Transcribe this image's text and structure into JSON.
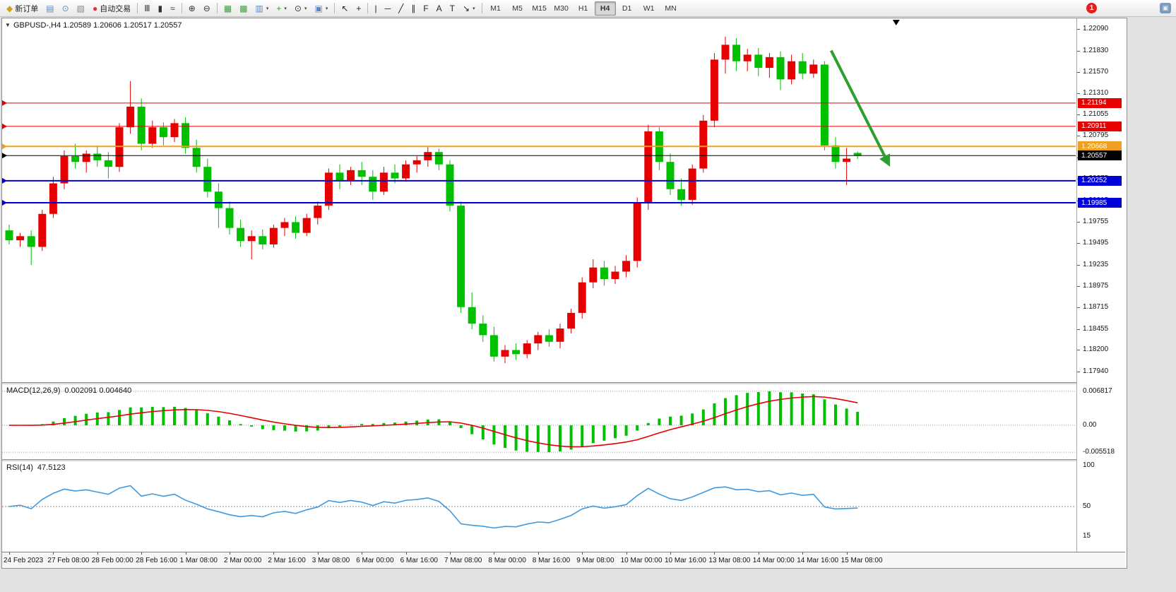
{
  "toolbar": {
    "buttons": [
      {
        "name": "new-order-button",
        "icon": "new-order-icon",
        "glyph": "◆",
        "color": "#d4a017",
        "label": "新订单"
      },
      {
        "name": "market-watch-button",
        "icon": "market-watch-icon",
        "glyph": "▤",
        "color": "#5b87c5"
      },
      {
        "name": "data-window-button",
        "icon": "data-window-icon",
        "glyph": "⊙",
        "color": "#5b87c5"
      },
      {
        "name": "navigator-button",
        "icon": "navigator-icon",
        "glyph": "▧",
        "color": "#888888"
      },
      {
        "name": "autotrading-button",
        "icon": "autotrading-icon",
        "glyph": "●",
        "color": "#dd3333",
        "label": "自动交易"
      },
      {
        "sep": true
      },
      {
        "name": "bars-chart-button",
        "icon": "bars-chart-icon",
        "glyph": "Ⅲ",
        "color": "#333333"
      },
      {
        "name": "candles-chart-button",
        "icon": "candles-chart-icon",
        "glyph": "▮",
        "color": "#333333"
      },
      {
        "name": "line-chart-button",
        "icon": "line-chart-icon",
        "glyph": "≈",
        "color": "#333333"
      },
      {
        "sep": true
      },
      {
        "name": "zoom-in-button",
        "icon": "zoom-in-icon",
        "glyph": "⊕",
        "color": "#333333"
      },
      {
        "name": "zoom-out-button",
        "icon": "zoom-out-icon",
        "glyph": "⊖",
        "color": "#333333"
      },
      {
        "sep": true
      },
      {
        "name": "tile-windows-button",
        "icon": "tile-windows-icon",
        "glyph": "▦",
        "color": "#3f9e3f"
      },
      {
        "name": "strategy-tester-button",
        "icon": "strategy-tester-icon",
        "glyph": "▩",
        "color": "#3f9e3f"
      },
      {
        "name": "new-chart-button",
        "icon": "new-chart-icon",
        "glyph": "▥",
        "color": "#5b87c5",
        "caret": true
      },
      {
        "name": "indicators-button",
        "icon": "add-indicator-icon",
        "glyph": "+",
        "color": "#2aa02a",
        "caret": true
      },
      {
        "name": "periods-button",
        "icon": "periods-icon",
        "glyph": "⊙",
        "color": "#333333",
        "caret": true
      },
      {
        "name": "templates-button",
        "icon": "template-icon",
        "glyph": "▣",
        "color": "#5b87c5",
        "caret": true
      },
      {
        "sep": true
      },
      {
        "name": "cursor-button",
        "icon": "cursor-icon",
        "glyph": "↖",
        "color": "#222222"
      },
      {
        "name": "crosshair-button",
        "icon": "crosshair-icon",
        "glyph": "+",
        "color": "#222222"
      },
      {
        "sep": true
      },
      {
        "name": "vline-button",
        "icon": "vertical-line-icon",
        "glyph": "|",
        "color": "#222222"
      },
      {
        "name": "hline-button",
        "icon": "horizontal-line-icon",
        "glyph": "─",
        "color": "#222222"
      },
      {
        "name": "trendline-button",
        "icon": "trendline-icon",
        "glyph": "╱",
        "color": "#222222"
      },
      {
        "name": "channel-button",
        "icon": "channel-icon",
        "glyph": "∥",
        "color": "#222222"
      },
      {
        "name": "fibonacci-button",
        "icon": "fibonacci-icon",
        "glyph": "F",
        "color": "#222222"
      },
      {
        "name": "text-button",
        "icon": "text-icon",
        "glyph": "A",
        "color": "#222222"
      },
      {
        "name": "label-button",
        "icon": "text-label-icon",
        "glyph": "T",
        "color": "#222222"
      },
      {
        "name": "arrows-button",
        "icon": "arrow-objects-icon",
        "glyph": "↘",
        "color": "#222222",
        "caret": true
      },
      {
        "sep": true
      }
    ],
    "timeframes": {
      "items": [
        "M1",
        "M5",
        "M15",
        "M30",
        "H1",
        "H4",
        "D1",
        "W1",
        "MN"
      ],
      "active": "H4"
    },
    "badge": "1",
    "plugin_glyph": "▣"
  },
  "chart": {
    "info_label": "GBPUSD-,H4 1.20589 1.20606 1.20517 1.20557",
    "oneclick_glyph": "▼",
    "shift_marker_glyph": "▼"
  },
  "chart_data": {
    "type": "candlestick",
    "symbol": "GBPUSD-",
    "timeframe": "H4",
    "title": "GBPUSD-,H4",
    "ohlc_current": {
      "open": "1.20589",
      "high": "1.20606",
      "low": "1.20517",
      "close": "1.20557"
    },
    "x_labels": [
      "24 Feb 2023",
      "27 Feb 08:00",
      "28 Feb 00:00",
      "28 Feb 16:00",
      "1 Mar 08:00",
      "2 Mar 00:00",
      "2 Mar 16:00",
      "3 Mar 08:00",
      "6 Mar 00:00",
      "6 Mar 16:00",
      "7 Mar 08:00",
      "8 Mar 00:00",
      "8 Mar 16:00",
      "9 Mar 08:00",
      "10 Mar 00:00",
      "10 Mar 16:00",
      "13 Mar 08:00",
      "14 Mar 00:00",
      "14 Mar 16:00",
      "15 Mar 08:00"
    ],
    "label_step": 4,
    "candles": [
      [
        1.1965,
        1.1972,
        1.1948,
        1.1953
      ],
      [
        1.1953,
        1.1962,
        1.1945,
        1.1958
      ],
      [
        1.1958,
        1.1965,
        1.1923,
        1.1945
      ],
      [
        1.1945,
        1.199,
        1.194,
        1.1985
      ],
      [
        1.1985,
        1.203,
        1.198,
        1.2022
      ],
      [
        1.2022,
        1.2062,
        1.2015,
        1.2055
      ],
      [
        1.2055,
        1.207,
        1.204,
        1.2048
      ],
      [
        1.2048,
        1.2062,
        1.2035,
        1.2058
      ],
      [
        1.2058,
        1.2068,
        1.2042,
        1.205
      ],
      [
        1.205,
        1.206,
        1.2028,
        1.2042
      ],
      [
        1.2042,
        1.2095,
        1.2036,
        1.209
      ],
      [
        1.209,
        1.2146,
        1.2082,
        1.2115
      ],
      [
        1.2115,
        1.2125,
        1.2062,
        1.207
      ],
      [
        1.207,
        1.2098,
        1.2065,
        1.209
      ],
      [
        1.209,
        1.2096,
        1.2068,
        1.2078
      ],
      [
        1.2078,
        1.21,
        1.2072,
        1.2095
      ],
      [
        1.2095,
        1.2102,
        1.2058,
        1.2065
      ],
      [
        1.2065,
        1.2075,
        1.2035,
        1.2042
      ],
      [
        1.2042,
        1.2052,
        1.2005,
        1.2012
      ],
      [
        1.2012,
        1.2022,
        1.1968,
        1.1992
      ],
      [
        1.1992,
        1.2,
        1.196,
        1.1968
      ],
      [
        1.1968,
        1.1978,
        1.1945,
        1.1952
      ],
      [
        1.1952,
        1.1965,
        1.193,
        1.1958
      ],
      [
        1.1958,
        1.1966,
        1.1942,
        1.1948
      ],
      [
        1.1948,
        1.1972,
        1.1944,
        1.1968
      ],
      [
        1.1968,
        1.198,
        1.1958,
        1.1975
      ],
      [
        1.1975,
        1.1982,
        1.1955,
        1.1962
      ],
      [
        1.1962,
        1.1985,
        1.1958,
        1.198
      ],
      [
        1.198,
        1.2,
        1.1972,
        1.1995
      ],
      [
        1.1995,
        1.204,
        1.199,
        1.2035
      ],
      [
        1.2035,
        1.2045,
        1.2015,
        1.2025
      ],
      [
        1.2025,
        1.2042,
        1.202,
        1.2038
      ],
      [
        1.2038,
        1.2048,
        1.202,
        1.203
      ],
      [
        1.203,
        1.2038,
        1.2002,
        1.2012
      ],
      [
        1.2012,
        1.2042,
        1.2008,
        1.2035
      ],
      [
        1.2035,
        1.2045,
        1.2022,
        1.2028
      ],
      [
        1.2028,
        1.205,
        1.2024,
        1.2045
      ],
      [
        1.2045,
        1.2055,
        1.2035,
        1.205
      ],
      [
        1.205,
        1.2066,
        1.2042,
        1.206
      ],
      [
        1.206,
        1.2064,
        1.2038,
        1.2045
      ],
      [
        1.2045,
        1.205,
        1.1988,
        1.1995
      ],
      [
        1.1995,
        1.2,
        1.1865,
        1.1872
      ],
      [
        1.1872,
        1.189,
        1.1845,
        1.1852
      ],
      [
        1.1852,
        1.1862,
        1.183,
        1.1838
      ],
      [
        1.1838,
        1.1848,
        1.1806,
        1.1812
      ],
      [
        1.1812,
        1.1826,
        1.1804,
        1.182
      ],
      [
        1.182,
        1.1828,
        1.1808,
        1.1815
      ],
      [
        1.1815,
        1.1832,
        1.181,
        1.1828
      ],
      [
        1.1828,
        1.1842,
        1.182,
        1.1838
      ],
      [
        1.1838,
        1.1845,
        1.1824,
        1.183
      ],
      [
        1.183,
        1.1852,
        1.1822,
        1.1846
      ],
      [
        1.1846,
        1.187,
        1.184,
        1.1865
      ],
      [
        1.1865,
        1.1908,
        1.1858,
        1.1902
      ],
      [
        1.1902,
        1.193,
        1.1895,
        1.192
      ],
      [
        1.192,
        1.1928,
        1.1898,
        1.1906
      ],
      [
        1.1906,
        1.1922,
        1.19,
        1.1915
      ],
      [
        1.1915,
        1.1935,
        1.1908,
        1.1928
      ],
      [
        1.1928,
        1.2005,
        1.192,
        1.1998
      ],
      [
        1.1998,
        1.2093,
        1.199,
        1.2085
      ],
      [
        1.2085,
        1.209,
        1.2038,
        1.2048
      ],
      [
        1.2048,
        1.2058,
        1.2008,
        1.2015
      ],
      [
        1.2015,
        1.2028,
        1.1995,
        1.2002
      ],
      [
        1.2002,
        1.2045,
        1.1996,
        1.204
      ],
      [
        1.204,
        1.2105,
        1.2035,
        1.2098
      ],
      [
        1.2098,
        1.218,
        1.209,
        1.2172
      ],
      [
        1.2172,
        1.22,
        1.2155,
        1.219
      ],
      [
        1.219,
        1.2198,
        1.2158,
        1.217
      ],
      [
        1.217,
        1.2185,
        1.2158,
        1.2178
      ],
      [
        1.2178,
        1.2186,
        1.2152,
        1.2162
      ],
      [
        1.2162,
        1.218,
        1.215,
        1.2175
      ],
      [
        1.2175,
        1.2182,
        1.2135,
        1.2148
      ],
      [
        1.2148,
        1.2178,
        1.2142,
        1.217
      ],
      [
        1.217,
        1.218,
        1.2148,
        1.2155
      ],
      [
        1.2155,
        1.2172,
        1.215,
        1.2166
      ],
      [
        1.2166,
        1.217,
        1.2062,
        1.2068
      ],
      [
        1.2068,
        1.2078,
        1.204,
        1.2048
      ],
      [
        1.2048,
        1.2065,
        1.202,
        1.2052
      ],
      [
        1.20589,
        1.20606,
        1.20517,
        1.20557
      ]
    ],
    "colors": {
      "bull": "#e60000",
      "bear": "#00c000",
      "arrow": "#2e9e2e",
      "rsi_line": "#3e9ade",
      "macd_histogram": "#00c000",
      "macd_signal": "#e60000"
    },
    "y_axis": {
      "min": 1.1781,
      "max": 1.2222,
      "ticks": [
        "1.22090",
        "1.21830",
        "1.21570",
        "1.21310",
        "1.21055",
        "1.20795",
        "1.20535",
        "1.20275",
        "1.20015",
        "1.19755",
        "1.19495",
        "1.19235",
        "1.18975",
        "1.18715",
        "1.18455",
        "1.18200",
        "1.17940"
      ]
    },
    "levels": [
      {
        "price": 1.21194,
        "label": "1.21194",
        "color": "#e60000",
        "width": 1
      },
      {
        "price": 1.20911,
        "label": "1.20911",
        "color": "#e60000",
        "width": 1
      },
      {
        "price": 1.20668,
        "label": "1.20668",
        "color": "#efa020",
        "width": 2
      },
      {
        "price": 1.20557,
        "label": "1.20557",
        "color": "#000000",
        "width": 1,
        "current": true
      },
      {
        "price": 1.20252,
        "label": "1.20252",
        "color": "#0000d8",
        "width": 2
      },
      {
        "price": 1.19985,
        "label": "1.19985",
        "color": "#0000d8",
        "width": 2
      }
    ],
    "arrow": {
      "from_index": 74.6,
      "from_price": 1.2183,
      "to_index": 79.8,
      "to_price": 1.2046
    },
    "indicators": [
      {
        "name": "MACD",
        "label": "MACD(12,26,9)",
        "values": "0.002091 0.004640",
        "params": [
          12,
          26,
          9
        ],
        "scale_labels": {
          "max": "0.006817",
          "zero": "0.00",
          "min": "-0.005518"
        }
      },
      {
        "name": "RSI",
        "label": "RSI(14)",
        "values": "47.5123",
        "period": 14,
        "scale_labels": [
          "100",
          "50",
          "15"
        ],
        "level": 50
      }
    ]
  }
}
